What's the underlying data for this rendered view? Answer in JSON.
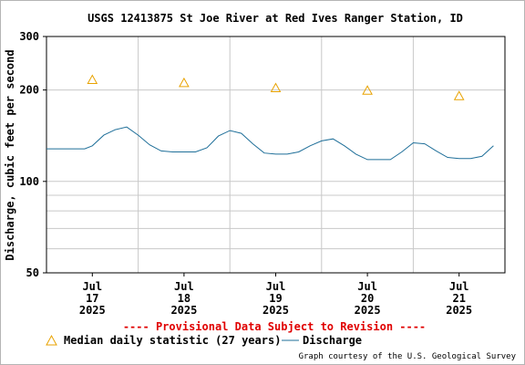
{
  "chart_data": {
    "type": "line",
    "title": "USGS 12413875 St Joe River at Red Ives Ranger Station, ID",
    "ylabel": "Discharge, cubic feet per second",
    "y_scale": "log",
    "ylim": [
      50,
      300
    ],
    "y_ticks": [
      "300",
      "200",
      "100",
      "50"
    ],
    "y_tick_values": [
      300,
      200,
      100,
      50
    ],
    "xlim": [
      "2025-07-16 12:00",
      "2025-07-21 12:00"
    ],
    "x_ticks": [
      {
        "month": "Jul",
        "day": "17",
        "year": "2025",
        "date": "2025-07-17"
      },
      {
        "month": "Jul",
        "day": "18",
        "year": "2025",
        "date": "2025-07-18"
      },
      {
        "month": "Jul",
        "day": "19",
        "year": "2025",
        "date": "2025-07-19"
      },
      {
        "month": "Jul",
        "day": "20",
        "year": "2025",
        "date": "2025-07-20"
      },
      {
        "month": "Jul",
        "day": "21",
        "year": "2025",
        "date": "2025-07-21"
      }
    ],
    "grid": true,
    "series": [
      {
        "name": "Discharge",
        "color": "#1f6f99",
        "x": [
          "2025-07-16 12:00",
          "2025-07-16 18:00",
          "2025-07-16 22:00",
          "2025-07-17 00:00",
          "2025-07-17 03:00",
          "2025-07-17 06:00",
          "2025-07-17 09:00",
          "2025-07-17 12:00",
          "2025-07-17 15:00",
          "2025-07-17 18:00",
          "2025-07-17 21:00",
          "2025-07-18 00:00",
          "2025-07-18 03:00",
          "2025-07-18 06:00",
          "2025-07-18 09:00",
          "2025-07-18 12:00",
          "2025-07-18 15:00",
          "2025-07-18 18:00",
          "2025-07-18 21:00",
          "2025-07-19 00:00",
          "2025-07-19 03:00",
          "2025-07-19 06:00",
          "2025-07-19 09:00",
          "2025-07-19 12:00",
          "2025-07-19 15:00",
          "2025-07-19 18:00",
          "2025-07-19 21:00",
          "2025-07-20 00:00",
          "2025-07-20 03:00",
          "2025-07-20 06:00",
          "2025-07-20 09:00",
          "2025-07-20 12:00",
          "2025-07-20 15:00",
          "2025-07-20 18:00",
          "2025-07-20 21:00",
          "2025-07-21 00:00",
          "2025-07-21 03:00",
          "2025-07-21 06:00",
          "2025-07-21 09:00"
        ],
        "y": [
          128,
          128,
          128,
          131,
          142,
          148,
          151,
          142,
          132,
          126,
          125,
          125,
          125,
          129,
          141,
          147,
          144,
          133,
          124,
          123,
          123,
          125,
          131,
          136,
          138,
          131,
          123,
          118,
          118,
          118,
          125,
          134,
          133,
          126,
          120,
          119,
          119,
          121,
          131
        ]
      },
      {
        "name": "Median daily statistic (27 years)",
        "color": "#e8a200",
        "marker": "triangle",
        "x": [
          "2025-07-17",
          "2025-07-18",
          "2025-07-19",
          "2025-07-20",
          "2025-07-21"
        ],
        "y": [
          216,
          211,
          203,
          199,
          191
        ]
      }
    ]
  },
  "provisional_text": "---- Provisional Data Subject to Revision ----",
  "legend": {
    "median_label": "Median daily statistic (27 years)",
    "discharge_label": "Discharge"
  },
  "credit": "Graph courtesy of the U.S. Geological Survey"
}
